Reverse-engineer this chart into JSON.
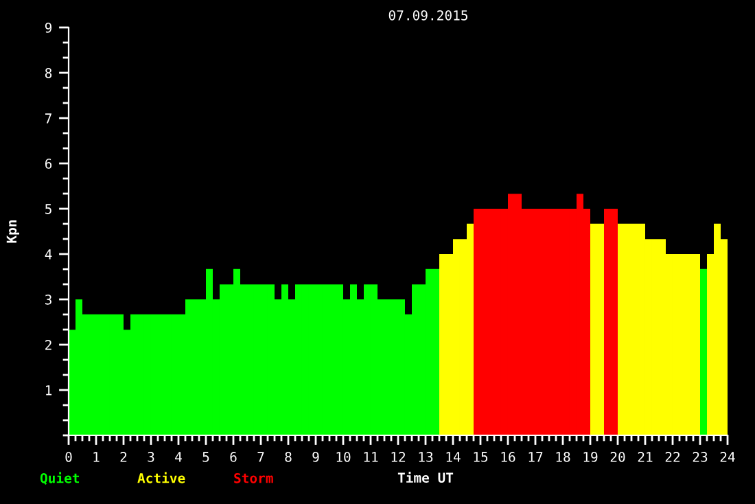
{
  "chart_data": {
    "type": "histogram",
    "title": "07.09.2015",
    "xlabel": "Time UT",
    "ylabel": "Kpn",
    "bins": [
      0,
      0.25,
      0.5,
      0.75,
      1,
      1.25,
      1.5,
      1.75,
      2,
      2.25,
      2.5,
      2.75,
      3,
      3.25,
      3.5,
      3.75,
      4,
      4.25,
      4.5,
      4.75,
      5,
      5.25,
      5.5,
      5.75,
      6,
      6.25,
      6.5,
      6.75,
      7,
      7.25,
      7.5,
      7.75,
      8,
      8.25,
      8.5,
      8.75,
      9,
      9.25,
      9.5,
      9.75,
      10,
      10.25,
      10.5,
      10.75,
      11,
      11.25,
      11.5,
      11.75,
      12,
      12.25,
      12.5,
      12.75,
      13,
      13.25,
      13.5,
      13.75,
      14,
      14.25,
      14.5,
      14.75,
      15,
      15.25,
      15.5,
      15.75,
      16,
      16.25,
      16.5,
      16.75,
      17,
      17.25,
      17.5,
      17.75,
      18,
      18.25,
      18.5,
      18.75,
      19,
      19.25,
      19.5,
      19.75,
      20,
      20.25,
      20.5,
      20.75,
      21,
      21.25,
      21.5,
      21.75,
      22,
      22.25,
      22.5,
      22.75,
      23,
      23.25,
      23.5,
      23.75,
      24
    ],
    "series": [
      {
        "name": "Quiet",
        "color": "#00ff00",
        "values": [
          2.33,
          3,
          2.67,
          2.67,
          2.67,
          2.67,
          2.67,
          2.67,
          2.33,
          2.67,
          2.67,
          2.67,
          2.67,
          2.67,
          2.67,
          2.67,
          2.67,
          3,
          3,
          3,
          3.67,
          3,
          3.33,
          3.33,
          3.67,
          3.33,
          3.33,
          3.33,
          3.33,
          3.33,
          3,
          3.33,
          3,
          3.33,
          3.33,
          3.33,
          3.33,
          3.33,
          3.33,
          3.33,
          3,
          3.33,
          3,
          3.33,
          3.33,
          3,
          3,
          3,
          3,
          2.67,
          3.33,
          3.33,
          3.67,
          3.67,
          null,
          null,
          null,
          null,
          null,
          null,
          null,
          null,
          null,
          null,
          null,
          null,
          null,
          null,
          null,
          null,
          null,
          null,
          null,
          null,
          null,
          null,
          null,
          null,
          null,
          null,
          null,
          null,
          null,
          null,
          null,
          null,
          null,
          null,
          null,
          null,
          null,
          null,
          3.67,
          null,
          null,
          null
        ]
      },
      {
        "name": "Active",
        "color": "#ffff00",
        "values": [
          null,
          null,
          null,
          null,
          null,
          null,
          null,
          null,
          null,
          null,
          null,
          null,
          null,
          null,
          null,
          null,
          null,
          null,
          null,
          null,
          null,
          null,
          null,
          null,
          null,
          null,
          null,
          null,
          null,
          null,
          null,
          null,
          null,
          null,
          null,
          null,
          null,
          null,
          null,
          null,
          null,
          null,
          null,
          null,
          null,
          null,
          null,
          null,
          null,
          null,
          null,
          null,
          null,
          null,
          4,
          4,
          4.33,
          4.33,
          4.67,
          null,
          null,
          null,
          null,
          null,
          null,
          null,
          null,
          null,
          null,
          null,
          null,
          null,
          null,
          null,
          null,
          null,
          4.67,
          4.67,
          null,
          null,
          4.67,
          4.67,
          4.67,
          4.67,
          4.33,
          4.33,
          4.33,
          4,
          4,
          4,
          4,
          4,
          null,
          4,
          4.67,
          4.33
        ]
      },
      {
        "name": "Storm",
        "color": "#ff0000",
        "values": [
          null,
          null,
          null,
          null,
          null,
          null,
          null,
          null,
          null,
          null,
          null,
          null,
          null,
          null,
          null,
          null,
          null,
          null,
          null,
          null,
          null,
          null,
          null,
          null,
          null,
          null,
          null,
          null,
          null,
          null,
          null,
          null,
          null,
          null,
          null,
          null,
          null,
          null,
          null,
          null,
          null,
          null,
          null,
          null,
          null,
          null,
          null,
          null,
          null,
          null,
          null,
          null,
          null,
          null,
          null,
          null,
          null,
          null,
          null,
          5,
          5,
          5,
          5,
          5,
          5.33,
          5.33,
          5,
          5,
          5,
          5,
          5,
          5,
          5,
          5,
          5.33,
          5,
          null,
          null,
          5,
          5,
          null,
          null,
          null,
          null,
          null,
          null,
          null,
          null,
          null,
          null,
          null,
          null,
          null,
          null,
          null,
          null
        ]
      }
    ],
    "xlim": [
      0,
      24
    ],
    "xticks": [
      0,
      1,
      2,
      3,
      4,
      5,
      6,
      7,
      8,
      9,
      10,
      11,
      12,
      13,
      14,
      15,
      16,
      17,
      18,
      19,
      20,
      21,
      22,
      23,
      24
    ],
    "ylim": [
      0,
      9
    ],
    "yticks": [
      1,
      2,
      3,
      4,
      5,
      6,
      7,
      8,
      9
    ],
    "grid": false,
    "legend": "bottom"
  }
}
